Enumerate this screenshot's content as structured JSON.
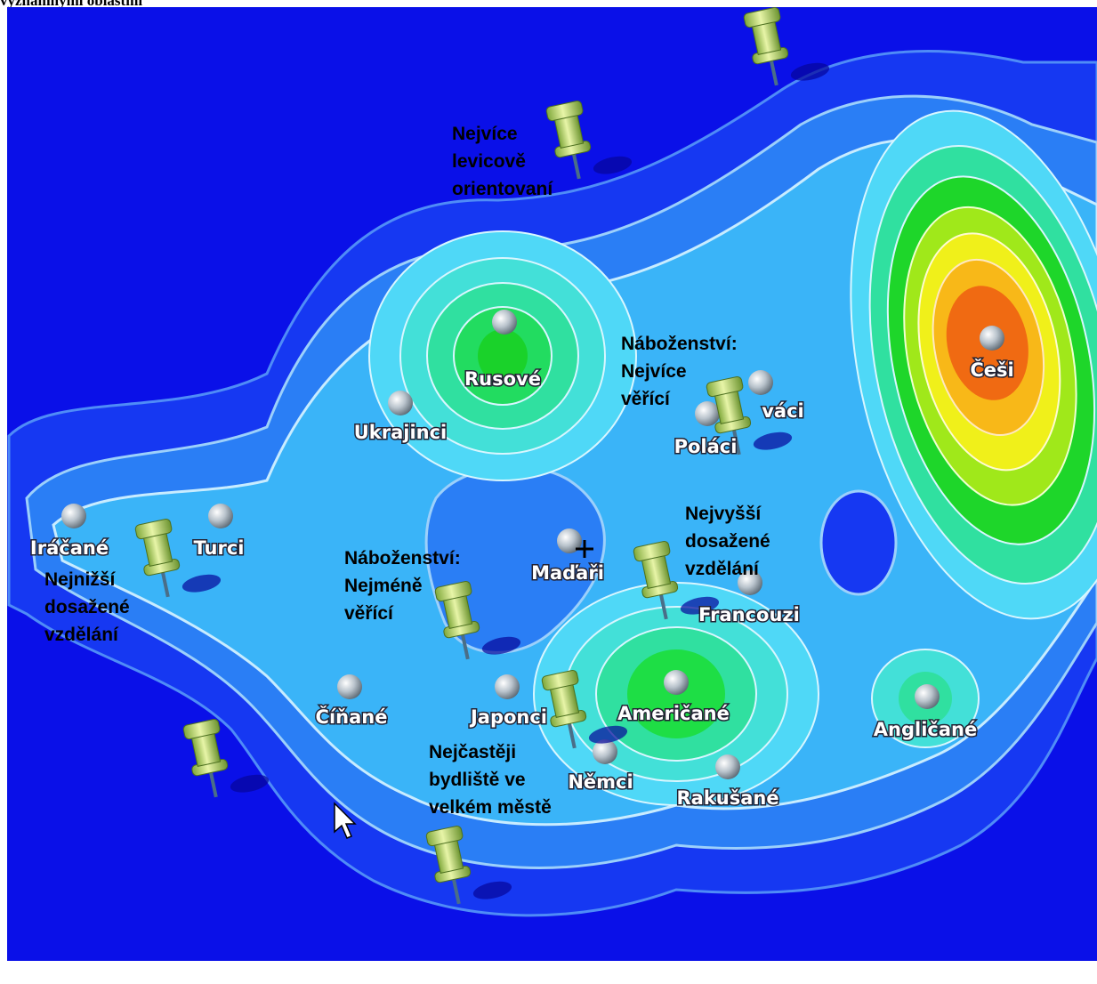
{
  "header": {
    "text": "významnými oblastmi"
  },
  "points": [
    {
      "label": "Rusové"
    },
    {
      "label": "Ukrajinci"
    },
    {
      "label": "Češi"
    },
    {
      "label": "váci"
    },
    {
      "label": "Poláci"
    },
    {
      "label": "Iráčané"
    },
    {
      "label": "Turci"
    },
    {
      "label": "Maďaři"
    },
    {
      "label": "Francouzi"
    },
    {
      "label": "Číňané"
    },
    {
      "label": "Japonci"
    },
    {
      "label": "Američané"
    },
    {
      "label": "Angličané"
    },
    {
      "label": "Němci"
    },
    {
      "label": "Rakušané"
    }
  ],
  "annotations": [
    {
      "lines": [
        "Nejvíce",
        "levicově",
        "orientovaní"
      ]
    },
    {
      "lines": [
        "Náboženství:",
        "Nejvíce",
        "věřící"
      ]
    },
    {
      "lines": [
        "Nejvyšší",
        "dosažené",
        "vzdělání"
      ]
    },
    {
      "lines": [
        "Náboženství:",
        "Nejméně",
        "věřící"
      ]
    },
    {
      "lines": [
        "Nejnižší",
        "dosažené",
        "vzdělání"
      ]
    },
    {
      "lines": [
        "Nejčastěji",
        "bydliště ve",
        "velkém městě"
      ]
    }
  ]
}
